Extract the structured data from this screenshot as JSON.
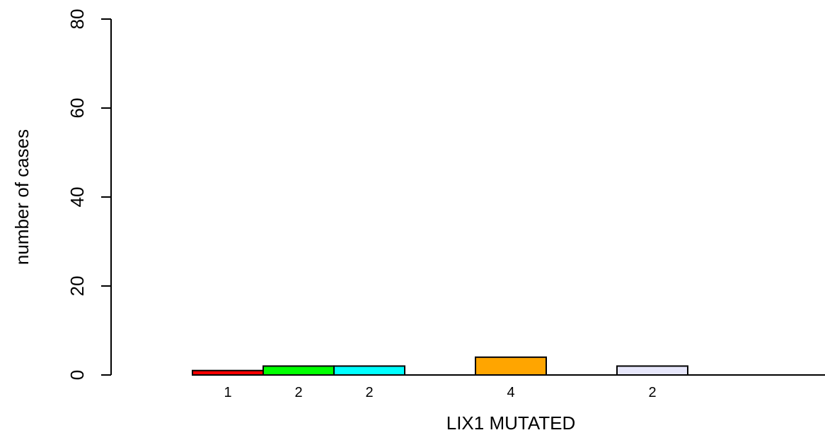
{
  "chart_data": {
    "type": "bar",
    "xlabel": "LIX1 MUTATED",
    "ylabel": "number of cases",
    "ylim": [
      0,
      80
    ],
    "yticks": [
      0,
      20,
      40,
      60,
      80
    ],
    "grid": false,
    "legend": "none",
    "values": [
      1,
      2,
      2,
      0,
      4,
      0,
      2,
      0,
      0
    ],
    "value_labels": [
      "1",
      "2",
      "2",
      "",
      "4",
      "",
      "2",
      "",
      ""
    ],
    "colors": [
      "#ff0000",
      "#00ff00",
      "#00ffff",
      "#ffffff",
      "#ffa500",
      "#ffffff",
      "#e6e6fa",
      "#ffffff",
      "#ffffff"
    ]
  }
}
